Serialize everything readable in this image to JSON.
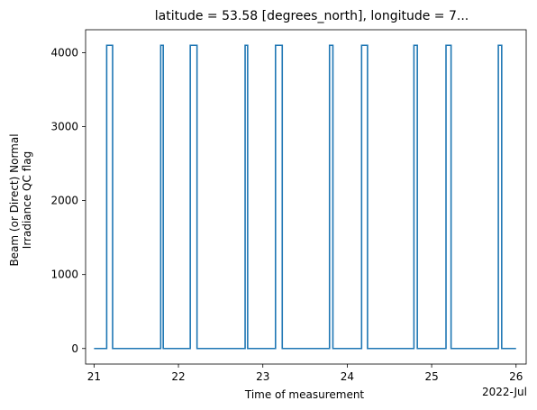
{
  "chart_data": {
    "type": "line",
    "title": "latitude = 53.58 [degrees_north], longitude = 7...",
    "xlabel": "Time of measurement",
    "ylabel_lines": [
      "Beam (or Direct) Normal",
      "Irradiance QC flag"
    ],
    "x_offset_label": "2022-Jul",
    "xlim": [
      20.9,
      26.12
    ],
    "ylim": [
      -210,
      4310
    ],
    "x_ticks": [
      21,
      22,
      23,
      24,
      25,
      26
    ],
    "x_tick_labels": [
      "21",
      "22",
      "23",
      "24",
      "25",
      "26"
    ],
    "y_ticks": [
      0,
      1000,
      2000,
      3000,
      4000
    ],
    "y_tick_labels": [
      "0",
      "1000",
      "2000",
      "3000",
      "4000"
    ],
    "grid": false,
    "line_color": "#1f77b4",
    "series": [
      {
        "x": [
          21.0,
          21.15,
          21.15,
          21.22,
          21.22,
          21.79,
          21.79,
          21.82,
          21.82,
          22.14,
          22.14,
          22.22,
          22.22,
          22.79,
          22.79,
          22.82,
          22.82,
          23.15,
          23.15,
          23.23,
          23.23,
          23.79,
          23.79,
          23.83,
          23.83,
          24.17,
          24.17,
          24.24,
          24.24,
          24.79,
          24.79,
          24.83,
          24.83,
          25.17,
          25.17,
          25.23,
          25.23,
          25.79,
          25.79,
          25.83,
          25.83,
          26.0
        ],
        "y": [
          0,
          0,
          4100,
          4100,
          0,
          0,
          4100,
          4100,
          0,
          0,
          4100,
          4100,
          0,
          0,
          4100,
          4100,
          0,
          0,
          4100,
          4100,
          0,
          0,
          4100,
          4100,
          0,
          0,
          4100,
          4100,
          0,
          0,
          4100,
          4100,
          0,
          0,
          4100,
          4100,
          0,
          0,
          4100,
          4100,
          0,
          0
        ]
      }
    ]
  }
}
